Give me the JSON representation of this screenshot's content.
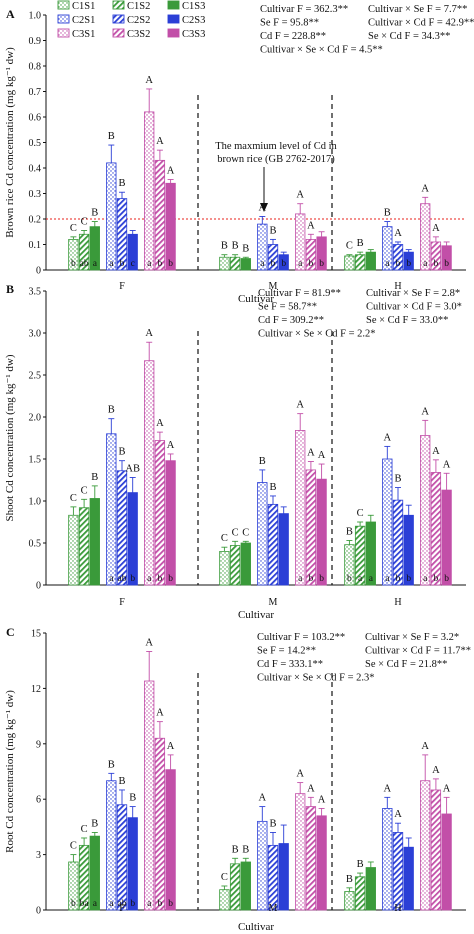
{
  "colors": {
    "C1": "#3a9a3a",
    "C2": "#2b3fd6",
    "C3": "#c24fa8",
    "limit": "#e8221b"
  },
  "legend": [
    {
      "label": "C1S1",
      "group": "C1",
      "pattern": "dots"
    },
    {
      "label": "C1S2",
      "group": "C1",
      "pattern": "hatch"
    },
    {
      "label": "C1S3",
      "group": "C1",
      "pattern": "solid"
    },
    {
      "label": "C2S1",
      "group": "C2",
      "pattern": "dots"
    },
    {
      "label": "C2S2",
      "group": "C2",
      "pattern": "hatch"
    },
    {
      "label": "C2S3",
      "group": "C2",
      "pattern": "solid"
    },
    {
      "label": "C3S1",
      "group": "C3",
      "pattern": "dots"
    },
    {
      "label": "C3S2",
      "group": "C3",
      "pattern": "hatch"
    },
    {
      "label": "C3S3",
      "group": "C3",
      "pattern": "solid"
    }
  ],
  "chart_data": [
    {
      "panel": "A",
      "type": "bar",
      "ylabel": "Brown rice Cd concentration (mg kg⁻¹ dw)",
      "xlabel": "Cultivar",
      "ylim": [
        0,
        1.0
      ],
      "yticks": [
        "0",
        "0.1",
        "0.2",
        "0.3",
        "0.4",
        "0.5",
        "0.6",
        "0.7",
        "0.8",
        "0.9",
        "1.0"
      ],
      "categories": [
        "F",
        "M",
        "H"
      ],
      "series_order": [
        "C1S1",
        "C1S2",
        "C1S3",
        "C2S1",
        "C2S2",
        "C2S3",
        "C3S1",
        "C3S2",
        "C3S3"
      ],
      "values": [
        [
          0.12,
          0.14,
          0.17,
          0.42,
          0.28,
          0.14,
          0.62,
          0.43,
          0.34
        ],
        [
          0.05,
          0.05,
          0.045,
          0.18,
          0.1,
          0.06,
          0.22,
          0.12,
          0.13
        ],
        [
          0.055,
          0.06,
          0.07,
          0.17,
          0.1,
          0.07,
          0.26,
          0.11,
          0.095
        ]
      ],
      "errors": [
        [
          0.01,
          0.015,
          0.02,
          0.07,
          0.025,
          0.015,
          0.09,
          0.04,
          0.015
        ],
        [
          0.01,
          0.01,
          0.005,
          0.03,
          0.02,
          0.01,
          0.04,
          0.02,
          0.02
        ],
        [
          0.005,
          0.01,
          0.01,
          0.02,
          0.01,
          0.01,
          0.025,
          0.02,
          0.015
        ]
      ],
      "upper_letters": [
        [
          "C",
          "C",
          "B",
          "B",
          "B",
          "",
          "A",
          "A",
          "A"
        ],
        [
          "B",
          "B",
          "B",
          "A",
          "B",
          "",
          "A",
          "A",
          ""
        ],
        [
          "C",
          "B",
          "",
          "B",
          "A",
          "",
          "A",
          "A",
          ""
        ]
      ],
      "lower_letters": [
        [
          "b",
          "ab",
          "a",
          "a",
          "b",
          "c",
          "a",
          "b",
          "b"
        ],
        [
          "",
          "",
          "",
          "a",
          "b",
          "b",
          "a",
          "b",
          "b"
        ],
        [
          "",
          "",
          "",
          "a",
          "b",
          "b",
          "a",
          "b",
          "b"
        ]
      ],
      "reference_line": {
        "value": 0.2
      },
      "annotation": [
        "The maxmium level of Cd in",
        "brown rice (GB 2762-2017)"
      ],
      "stats": [
        [
          "Cultivar F = 362.3**",
          "Cultivar × Se   F = 7.7**"
        ],
        [
          "Se           F = 95.8**",
          "Cultivar × Cd  F = 42.9**"
        ],
        [
          "Cd           F = 228.8**",
          "Se × Cd         F = 34.3**"
        ],
        [
          "Cultivar × Se × Cd   F = 4.5**",
          ""
        ]
      ]
    },
    {
      "panel": "B",
      "type": "bar",
      "ylabel": "Shoot Cd concentration (mg kg⁻¹ dw)",
      "xlabel": "Cultivar",
      "ylim": [
        0,
        3.5
      ],
      "yticks": [
        "0",
        "0.5",
        "1.0",
        "1.5",
        "2.0",
        "2.5",
        "3.0",
        "3.5"
      ],
      "categories": [
        "F",
        "M",
        "H"
      ],
      "series_order": [
        "C1S1",
        "C1S2",
        "C1S3",
        "C2S1",
        "C2S2",
        "C2S3",
        "C3S1",
        "C3S2",
        "C3S3"
      ],
      "values": [
        [
          0.83,
          0.92,
          1.03,
          1.8,
          1.36,
          1.1,
          2.67,
          1.72,
          1.48
        ],
        [
          0.4,
          0.47,
          0.5,
          1.22,
          0.96,
          0.85,
          1.84,
          1.37,
          1.26
        ],
        [
          0.48,
          0.7,
          0.75,
          1.5,
          1.01,
          0.83,
          1.78,
          1.34,
          1.13
        ]
      ],
      "errors": [
        [
          0.1,
          0.1,
          0.15,
          0.18,
          0.12,
          0.18,
          0.22,
          0.1,
          0.08
        ],
        [
          0.05,
          0.05,
          0.02,
          0.15,
          0.1,
          0.08,
          0.2,
          0.1,
          0.18
        ],
        [
          0.05,
          0.05,
          0.08,
          0.15,
          0.15,
          0.12,
          0.18,
          0.15,
          0.2
        ]
      ],
      "upper_letters": [
        [
          "C",
          "C",
          "B",
          "B",
          "B",
          "AB",
          "A",
          "A",
          "A"
        ],
        [
          "C",
          "C",
          "C",
          "B",
          "B",
          "",
          "A",
          "A",
          "A"
        ],
        [
          "B",
          "C",
          "",
          "A",
          "B",
          "",
          "A",
          "A",
          "A"
        ]
      ],
      "lower_letters": [
        [
          "",
          "",
          "",
          "a",
          "ab",
          "b",
          "a",
          "b",
          "b"
        ],
        [
          "",
          "",
          "",
          "",
          "",
          "",
          "a",
          "b",
          "b"
        ],
        [
          "b",
          "a",
          "a",
          "a",
          "b",
          "b",
          "a",
          "b",
          "b"
        ]
      ],
      "stats": [
        [
          "Cultivar F = 81.9**",
          "Cultivar × Se   F = 2.8*"
        ],
        [
          "Se           F = 58.7**",
          "Cultivar × Cd  F = 3.0*"
        ],
        [
          "Cd           F = 309.2**",
          "Se × Cd         F = 33.0**"
        ],
        [
          "Cultivar × Se × Cd   F = 2.2*",
          ""
        ]
      ]
    },
    {
      "panel": "C",
      "type": "bar",
      "ylabel": "Root Cd concentration (mg kg⁻¹ dw)",
      "xlabel": "Cultivar",
      "ylim": [
        0,
        15
      ],
      "yticks": [
        "0",
        "3",
        "6",
        "9",
        "12",
        "15"
      ],
      "categories": [
        "F",
        "M",
        "H"
      ],
      "series_order": [
        "C1S1",
        "C1S2",
        "C1S3",
        "C2S1",
        "C2S2",
        "C2S3",
        "C3S1",
        "C3S2",
        "C3S3"
      ],
      "values": [
        [
          2.6,
          3.5,
          4.0,
          7.0,
          5.7,
          5.0,
          12.4,
          9.3,
          7.6
        ],
        [
          1.1,
          2.5,
          2.6,
          4.8,
          3.5,
          3.6,
          6.3,
          5.6,
          5.1
        ],
        [
          1.0,
          1.8,
          2.3,
          5.5,
          4.2,
          3.4,
          7.0,
          6.5,
          5.2
        ]
      ],
      "errors": [
        [
          0.4,
          0.4,
          0.2,
          0.4,
          0.8,
          0.6,
          1.6,
          0.9,
          0.8
        ],
        [
          0.2,
          0.3,
          0.2,
          0.8,
          0.7,
          1.0,
          0.6,
          0.5,
          0.4
        ],
        [
          0.2,
          0.2,
          0.3,
          0.6,
          0.5,
          0.5,
          1.4,
          0.6,
          0.9
        ]
      ],
      "upper_letters": [
        [
          "C",
          "C",
          "B",
          "B",
          "B",
          "B",
          "A",
          "A",
          "A"
        ],
        [
          "C",
          "B",
          "B",
          "A",
          "B",
          "",
          "A",
          "A",
          "A"
        ],
        [
          "B",
          "B",
          "",
          "A",
          "A",
          "",
          "A",
          "A",
          "A"
        ]
      ],
      "lower_letters": [
        [
          "b",
          "ba",
          "a",
          "a",
          "ab",
          "b",
          "a",
          "b",
          "b"
        ],
        [
          "",
          "",
          "",
          "",
          "",
          "",
          "",
          "",
          ""
        ],
        [
          "",
          "",
          "",
          "",
          "",
          "",
          "",
          "",
          ""
        ]
      ],
      "stats": [
        [
          "Cultivar F = 103.2**",
          "Cultivar × Se   F = 3.2*"
        ],
        [
          "Se           F = 14.2**",
          "Cultivar × Cd  F = 11.7**"
        ],
        [
          "Cd           F = 333.1**",
          "Se × Cd         F = 21.8**"
        ],
        [
          "Cultivar × Se × Cd   F = 2.3*",
          ""
        ]
      ]
    }
  ]
}
